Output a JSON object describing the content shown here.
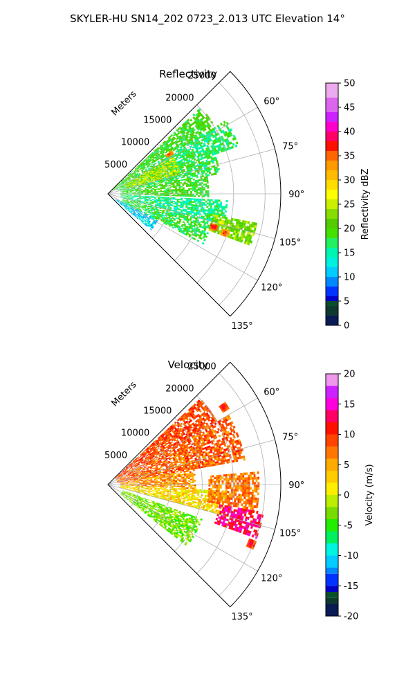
{
  "figure": {
    "title": "SKYLER-HU  SN14_202  0723_2.013 UTC Elevation 14°"
  },
  "chart_data": [
    {
      "type": "heatmap",
      "subtype": "polar-ppi-sector",
      "title": "Reflectivity",
      "range_axis_label": "Meters",
      "range_ticks": [
        "5000",
        "10000",
        "15000",
        "20000",
        "25000"
      ],
      "range_tick_values": [
        5000,
        10000,
        15000,
        20000,
        25000
      ],
      "range_max": 27500,
      "azimuth_range": [
        45,
        135
      ],
      "azimuth_ticks": [
        "60°",
        "75°",
        "90°",
        "105°",
        "120°",
        "135°"
      ],
      "azimuth_tick_values": [
        60,
        75,
        90,
        105,
        120,
        135
      ],
      "colorbar": {
        "label": "Reflectivity dBZ",
        "range": [
          0,
          50
        ],
        "ticks": [
          "0",
          "5",
          "10",
          "15",
          "20",
          "25",
          "30",
          "35",
          "40",
          "45",
          "50"
        ],
        "tick_values": [
          0,
          5,
          10,
          15,
          20,
          25,
          30,
          35,
          40,
          45,
          50
        ],
        "stops": [
          [
            0,
            "#0a1a55"
          ],
          [
            2,
            "#0d3a2f"
          ],
          [
            4,
            "#0b4e2c"
          ],
          [
            5,
            "#0000c8"
          ],
          [
            6,
            "#0033ff"
          ],
          [
            8,
            "#0088ff"
          ],
          [
            10,
            "#00ccff"
          ],
          [
            12,
            "#00f0e0"
          ],
          [
            14,
            "#00f5b0"
          ],
          [
            16,
            "#22f060"
          ],
          [
            18,
            "#44e000"
          ],
          [
            20,
            "#55cc00"
          ],
          [
            22,
            "#88dd00"
          ],
          [
            24,
            "#ccee00"
          ],
          [
            26,
            "#ffff00"
          ],
          [
            28,
            "#ffdd00"
          ],
          [
            30,
            "#ffbb00"
          ],
          [
            32,
            "#ff9900"
          ],
          [
            34,
            "#ff6600"
          ],
          [
            36,
            "#ff1100"
          ],
          [
            38,
            "#ff0066"
          ],
          [
            40,
            "#ff00cc"
          ],
          [
            42,
            "#cc22ff"
          ],
          [
            44,
            "#dd66ee"
          ],
          [
            47,
            "#eeaaee"
          ],
          [
            50,
            "#ffe0ff"
          ]
        ]
      },
      "echo_regions": [
        {
          "az": [
            47,
            58
          ],
          "r": [
            1000,
            20000
          ],
          "value": 19
        },
        {
          "az": [
            58,
            70
          ],
          "r": [
            1500,
            22000
          ],
          "value": 17
        },
        {
          "az": [
            70,
            80
          ],
          "r": [
            2000,
            18000
          ],
          "value": 18
        },
        {
          "az": [
            80,
            92
          ],
          "r": [
            2000,
            16000
          ],
          "value": 19
        },
        {
          "az": [
            93,
            105
          ],
          "r": [
            2000,
            19000
          ],
          "value": 16
        },
        {
          "az": [
            105,
            118
          ],
          "r": [
            2500,
            17000
          ],
          "value": 18
        },
        {
          "az": [
            118,
            130
          ],
          "r": [
            1500,
            9000
          ],
          "value": 12
        },
        {
          "az": [
            60,
            75
          ],
          "r": [
            3000,
            12000
          ],
          "value": 24
        },
        {
          "az": [
            101,
            110
          ],
          "r": [
            17000,
            24000
          ],
          "value": 22
        }
      ],
      "hot_spots": [
        {
          "az": 57,
          "r": 11500,
          "value": 38
        },
        {
          "az": 107,
          "r": 17500,
          "value": 40
        },
        {
          "az": 108,
          "r": 19500,
          "value": 38
        },
        {
          "az": 104,
          "r": 18500,
          "value": 28
        }
      ]
    },
    {
      "type": "heatmap",
      "subtype": "polar-ppi-sector",
      "title": "Velocity",
      "range_axis_label": "Meters",
      "range_ticks": [
        "5000",
        "10000",
        "15000",
        "20000",
        "25000"
      ],
      "range_tick_values": [
        5000,
        10000,
        15000,
        20000,
        25000
      ],
      "range_max": 27500,
      "azimuth_range": [
        45,
        135
      ],
      "azimuth_ticks": [
        "60°",
        "75°",
        "90°",
        "105°",
        "120°",
        "135°"
      ],
      "azimuth_tick_values": [
        60,
        75,
        90,
        105,
        120,
        135
      ],
      "colorbar": {
        "label": "Velocity (m/s)",
        "range": [
          -20,
          20
        ],
        "ticks": [
          "-20",
          "-15",
          "-10",
          "-5",
          "0",
          "5",
          "10",
          "15",
          "20"
        ],
        "tick_values": [
          -20,
          -15,
          -10,
          -5,
          0,
          5,
          10,
          15,
          20
        ],
        "stops": [
          [
            -20,
            "#0a1a55"
          ],
          [
            -18,
            "#0d3a2f"
          ],
          [
            -17,
            "#0b4e2c"
          ],
          [
            -16,
            "#0000c8"
          ],
          [
            -15,
            "#0033ff"
          ],
          [
            -13,
            "#0088ff"
          ],
          [
            -12,
            "#00ccff"
          ],
          [
            -10,
            "#00f5e0"
          ],
          [
            -8,
            "#00f060"
          ],
          [
            -6,
            "#22ee00"
          ],
          [
            -4,
            "#77dd00"
          ],
          [
            -2,
            "#bbee00"
          ],
          [
            0,
            "#ffee00"
          ],
          [
            2,
            "#ffcc00"
          ],
          [
            4,
            "#ffaa00"
          ],
          [
            6,
            "#ff7700"
          ],
          [
            8,
            "#ff4400"
          ],
          [
            10,
            "#ff1100"
          ],
          [
            12,
            "#ff0066"
          ],
          [
            14,
            "#ff00dd"
          ],
          [
            16,
            "#cc22ff"
          ],
          [
            18,
            "#ee99ee"
          ],
          [
            20,
            "#ffe0ff"
          ]
        ]
      },
      "echo_regions": [
        {
          "az": [
            47,
            60
          ],
          "r": [
            1500,
            20000
          ],
          "value": 9
        },
        {
          "az": [
            60,
            80
          ],
          "r": [
            1500,
            22000
          ],
          "value": 8
        },
        {
          "az": [
            80,
            93
          ],
          "r": [
            2000,
            14000
          ],
          "value": 6
        },
        {
          "az": [
            93,
            105
          ],
          "r": [
            2000,
            19000
          ],
          "value": 2
        },
        {
          "az": [
            100,
            110
          ],
          "r": [
            18000,
            25000
          ],
          "value": 13
        },
        {
          "az": [
            110,
            128
          ],
          "r": [
            2500,
            16000
          ],
          "value": -3
        },
        {
          "az": [
            85,
            100
          ],
          "r": [
            16000,
            24000
          ],
          "value": 7
        }
      ],
      "hot_spots": [
        {
          "az": 56,
          "r": 22000,
          "value": 13
        },
        {
          "az": 112,
          "r": 24500,
          "value": 14
        }
      ]
    }
  ]
}
